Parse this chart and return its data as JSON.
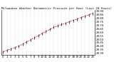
{
  "title": "Milwaukee Weather Barometric Pressure per Hour (Last 24 Hours)",
  "hours": [
    0,
    1,
    2,
    3,
    4,
    5,
    6,
    7,
    8,
    9,
    10,
    11,
    12,
    13,
    14,
    15,
    16,
    17,
    18,
    19,
    20,
    21,
    22,
    23
  ],
  "pressure": [
    29.32,
    29.34,
    29.36,
    29.38,
    29.4,
    29.43,
    29.46,
    29.49,
    29.52,
    29.55,
    29.58,
    29.61,
    29.64,
    29.67,
    29.69,
    29.71,
    29.73,
    29.75,
    29.77,
    29.79,
    29.81,
    29.83,
    29.85,
    29.87
  ],
  "line_color": "#cc0000",
  "marker_color": "#000000",
  "bg_color": "#ffffff",
  "grid_color": "#aaaaaa",
  "title_fontsize": 3.0,
  "tick_fontsize": 2.8,
  "ylim": [
    29.28,
    29.92
  ],
  "yticks": [
    29.3,
    29.35,
    29.4,
    29.45,
    29.5,
    29.55,
    29.6,
    29.65,
    29.7,
    29.75,
    29.8,
    29.85,
    29.9
  ],
  "xtick_labels": [
    "0",
    "1",
    "2",
    "3",
    "4",
    "5",
    "6",
    "7",
    "8",
    "9",
    "10",
    "11",
    "12",
    "13",
    "14",
    "15",
    "16",
    "17",
    "18",
    "19",
    "20",
    "21",
    "22",
    "23"
  ]
}
